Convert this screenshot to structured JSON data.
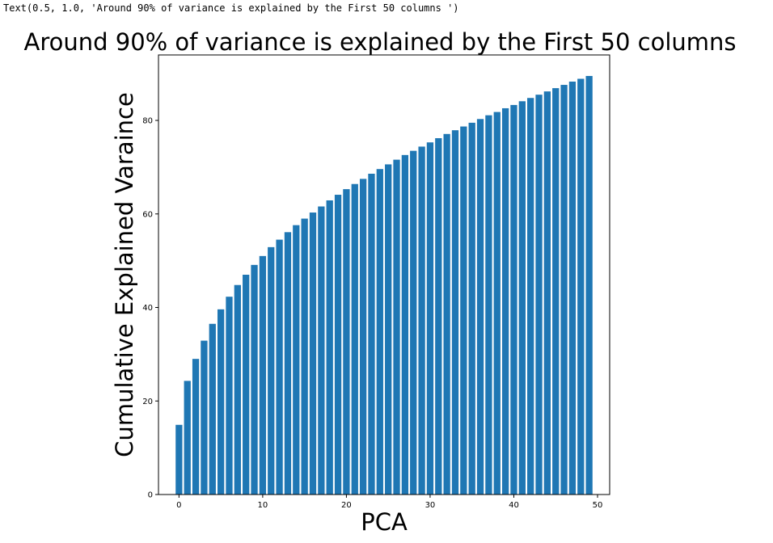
{
  "output_repr": "Text(0.5, 1.0, 'Around 90% of variance is explained by the First 50 columns ')",
  "chart_data": {
    "type": "bar",
    "title": "Around 90% of variance is explained by the First 50 columns",
    "xlabel": "PCA",
    "ylabel": "Cumulative Explained Varaince",
    "x": [
      0,
      1,
      2,
      3,
      4,
      5,
      6,
      7,
      8,
      9,
      10,
      11,
      12,
      13,
      14,
      15,
      16,
      17,
      18,
      19,
      20,
      21,
      22,
      23,
      24,
      25,
      26,
      27,
      28,
      29,
      30,
      31,
      32,
      33,
      34,
      35,
      36,
      37,
      38,
      39,
      40,
      41,
      42,
      43,
      44,
      45,
      46,
      47,
      48,
      49
    ],
    "values": [
      14.9,
      24.3,
      29.0,
      32.9,
      36.5,
      39.6,
      42.3,
      44.8,
      47.0,
      49.1,
      51.0,
      52.9,
      54.5,
      56.1,
      57.6,
      59.0,
      60.3,
      61.6,
      62.9,
      64.1,
      65.3,
      66.4,
      67.5,
      68.6,
      69.6,
      70.6,
      71.6,
      72.6,
      73.5,
      74.4,
      75.3,
      76.2,
      77.1,
      77.9,
      78.7,
      79.5,
      80.3,
      81.1,
      81.8,
      82.6,
      83.3,
      84.1,
      84.8,
      85.5,
      86.2,
      86.9,
      87.6,
      88.3,
      88.9,
      89.5
    ],
    "xticks": [
      0,
      10,
      20,
      30,
      40,
      50
    ],
    "yticks": [
      0,
      20,
      40,
      60,
      80
    ],
    "xlim": [
      -2.45,
      51.45
    ],
    "ylim": [
      0,
      94
    ],
    "bar_color": "#1f77b4",
    "grid": false
  }
}
